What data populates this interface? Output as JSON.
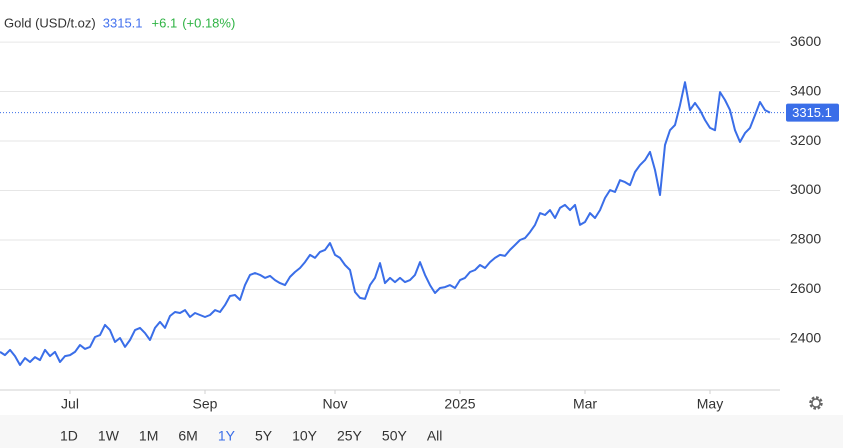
{
  "chart_data": {
    "type": "line",
    "title": "Gold (USD/t.oz)",
    "last_price": "3315.1",
    "change": "+6.1",
    "change_pct": "(+0.18%)",
    "current_value": 3315.1,
    "current_label": "3315.1",
    "series": [
      {
        "name": "Gold",
        "color": "#3a6ee8",
        "values": [
          2348,
          2335,
          2356,
          2331,
          2295,
          2323,
          2307,
          2327,
          2315,
          2356,
          2331,
          2348,
          2307,
          2331,
          2335,
          2348,
          2376,
          2360,
          2368,
          2408,
          2416,
          2457,
          2436,
          2388,
          2404,
          2368,
          2396,
          2436,
          2445,
          2424,
          2396,
          2445,
          2469,
          2445,
          2493,
          2509,
          2505,
          2517,
          2489,
          2505,
          2497,
          2489,
          2497,
          2517,
          2509,
          2537,
          2574,
          2578,
          2558,
          2618,
          2659,
          2667,
          2659,
          2647,
          2655,
          2638,
          2626,
          2618,
          2651,
          2671,
          2687,
          2711,
          2740,
          2728,
          2752,
          2760,
          2788,
          2740,
          2728,
          2699,
          2679,
          2590,
          2566,
          2562,
          2618,
          2647,
          2707,
          2626,
          2647,
          2630,
          2647,
          2630,
          2638,
          2659,
          2711,
          2659,
          2618,
          2586,
          2606,
          2610,
          2618,
          2606,
          2638,
          2647,
          2671,
          2679,
          2699,
          2687,
          2711,
          2728,
          2740,
          2736,
          2760,
          2780,
          2800,
          2808,
          2832,
          2861,
          2909,
          2901,
          2921,
          2889,
          2930,
          2942,
          2921,
          2942,
          2861,
          2873,
          2909,
          2889,
          2921,
          2970,
          3002,
          2994,
          3042,
          3034,
          3022,
          3075,
          3103,
          3123,
          3156,
          3083,
          2982,
          3184,
          3244,
          3265,
          3345,
          3438,
          3325,
          3354,
          3325,
          3285,
          3253,
          3244,
          3398,
          3366,
          3325,
          3244,
          3196,
          3232,
          3253,
          3305,
          3358,
          3325,
          3315.1
        ]
      }
    ],
    "xlim": [
      0,
      154
    ],
    "xticks": [
      {
        "value": 14,
        "label": "Jul"
      },
      {
        "value": 41,
        "label": "Sep"
      },
      {
        "value": 67,
        "label": "Nov"
      },
      {
        "value": 92,
        "label": "2025"
      },
      {
        "value": 117,
        "label": "Mar"
      },
      {
        "value": 142,
        "label": "May"
      }
    ],
    "ylim": [
      2194,
      3770
    ],
    "yticks": [
      2400,
      2600,
      2800,
      3000,
      3200,
      3400,
      3600
    ],
    "grid": true,
    "ranges": [
      "1D",
      "1W",
      "1M",
      "6M",
      "1Y",
      "5Y",
      "10Y",
      "25Y",
      "50Y",
      "All"
    ],
    "selected_range": 4
  }
}
